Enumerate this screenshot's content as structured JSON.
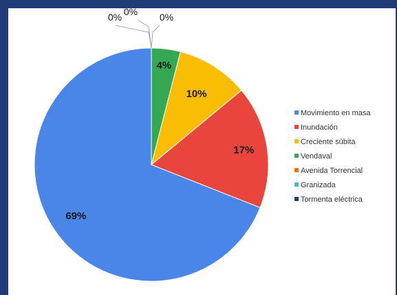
{
  "chart_data": {
    "type": "pie",
    "categories": [
      "Movimiento en masa",
      "Inundación",
      "Creciente súbita",
      "Vendaval",
      "Avenida Torrencial",
      "Granizada",
      "Tormenta eléctrica"
    ],
    "values": [
      69,
      17,
      10,
      4,
      0,
      0,
      0
    ],
    "labels": [
      "69%",
      "17%",
      "10%",
      "4%",
      "0%",
      "0%",
      "0%"
    ],
    "colors": [
      "#4a86e8",
      "#e8453c",
      "#fbbc04",
      "#34a853",
      "#ff6d01",
      "#46bdc6",
      "#1f3c78"
    ],
    "legend_placement": "right",
    "start": "top",
    "direction": "clockwise"
  }
}
